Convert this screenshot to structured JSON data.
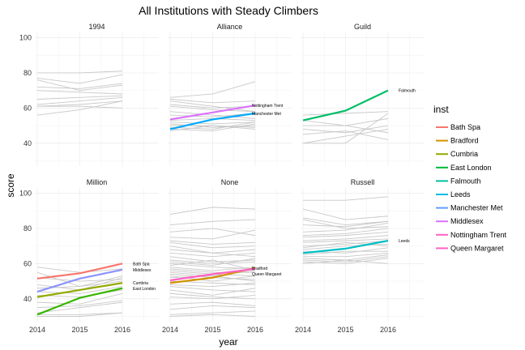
{
  "title": "All Institutions with Steady Climbers",
  "chart_data": {
    "type": "line",
    "title": "All Institutions with Steady Climbers",
    "xlabel": "year",
    "ylabel": "score",
    "x": [
      2014,
      2015,
      2016
    ],
    "ylim": [
      27,
      103
    ],
    "yticks": [
      40,
      60,
      80,
      100
    ],
    "grid": true,
    "legend": {
      "title": "inst",
      "position": "right",
      "entries": [
        {
          "name": "Bath Spa",
          "color": "#F8766D"
        },
        {
          "name": "Bradford",
          "color": "#D39200"
        },
        {
          "name": "Cumbria",
          "color": "#93AA00"
        },
        {
          "name": "East London",
          "color": "#00BA38"
        },
        {
          "name": "Falmouth",
          "color": "#00C19F"
        },
        {
          "name": "Leeds",
          "color": "#00B9E3"
        },
        {
          "name": "Manchester Met",
          "color": "#619CFF"
        },
        {
          "name": "Middlesex",
          "color": "#DB72FB"
        },
        {
          "name": "Nottingham Trent",
          "color": "#FF61C3"
        },
        {
          "name": "Queen Margaret",
          "color": "#FF61C3"
        }
      ]
    },
    "background_color": "#c8c8c8",
    "panels": [
      {
        "name": "1994",
        "background": [
          [
            80,
            80,
            81
          ],
          [
            77,
            74,
            79
          ],
          [
            76,
            70,
            73
          ],
          [
            72,
            71,
            74
          ],
          [
            70,
            69,
            68
          ],
          [
            65,
            66,
            67
          ],
          [
            62,
            64,
            66
          ],
          [
            61,
            62,
            64
          ],
          [
            61,
            61,
            60
          ],
          [
            56,
            59,
            64
          ]
        ],
        "highlight": []
      },
      {
        "name": "Alliance",
        "background": [
          [
            66,
            68,
            75
          ],
          [
            65,
            63,
            64
          ],
          [
            64,
            61,
            58
          ],
          [
            62,
            60,
            61
          ],
          [
            61,
            59,
            58
          ],
          [
            58,
            56,
            54
          ],
          [
            56,
            55,
            57
          ],
          [
            53,
            54,
            53
          ],
          [
            52,
            51,
            52
          ],
          [
            51,
            49,
            50
          ],
          [
            50,
            50,
            48
          ],
          [
            48,
            47,
            51
          ],
          [
            47,
            50,
            49
          ],
          [
            49,
            48,
            52
          ]
        ],
        "highlight": [
          {
            "name": "Nottingham Trent",
            "values": [
              53.5,
              57.5,
              61.5
            ],
            "color": "#DB72FB"
          },
          {
            "name": "Manchester Met",
            "values": [
              48,
              53.5,
              57
            ],
            "color": "#00A9FF"
          }
        ]
      },
      {
        "name": "Guild",
        "background": [
          [
            56,
            57,
            58
          ],
          [
            53,
            50,
            54
          ],
          [
            50,
            50,
            46
          ],
          [
            48,
            46,
            50
          ],
          [
            45,
            47,
            42
          ],
          [
            40,
            40,
            57
          ],
          [
            40,
            44,
            48
          ]
        ],
        "highlight": [
          {
            "name": "Falmouth",
            "values": [
              53,
              58.5,
              70
            ],
            "color": "#00BE67"
          }
        ]
      },
      {
        "name": "Million",
        "background": [
          [
            58,
            55,
            57
          ],
          [
            55,
            47,
            53
          ],
          [
            52,
            50,
            51
          ],
          [
            48,
            45,
            52
          ],
          [
            46,
            47,
            50
          ],
          [
            44,
            43,
            47
          ],
          [
            42,
            41,
            45
          ],
          [
            38,
            37,
            43
          ],
          [
            35,
            36,
            39
          ],
          [
            32,
            35,
            38
          ],
          [
            31,
            31,
            32
          ],
          [
            30,
            30,
            32
          ]
        ],
        "highlight": [
          {
            "name": "Bath Spa",
            "values": [
              51.5,
              54.5,
              60
            ],
            "color": "#F8766D"
          },
          {
            "name": "Middlesex",
            "values": [
              44,
              51.5,
              56.5
            ],
            "color": "#8B93FF"
          },
          {
            "name": "Cumbria",
            "values": [
              41,
              45,
              49
            ],
            "color": "#93AA00"
          },
          {
            "name": "East London",
            "values": [
              31,
              40.5,
              46
            ],
            "color": "#39B600"
          }
        ]
      },
      {
        "name": "None",
        "background": [
          [
            88,
            92,
            91
          ],
          [
            82,
            84,
            85
          ],
          [
            78,
            80,
            76
          ],
          [
            75,
            74,
            79
          ],
          [
            73,
            71,
            72
          ],
          [
            72,
            69,
            70
          ],
          [
            70,
            66,
            68
          ],
          [
            68,
            66,
            64
          ],
          [
            66,
            64,
            66
          ],
          [
            64,
            61,
            62
          ],
          [
            62,
            60,
            61
          ],
          [
            61,
            59,
            63
          ],
          [
            60,
            58,
            57
          ],
          [
            59,
            62,
            56
          ],
          [
            58,
            56,
            58
          ],
          [
            57,
            55,
            55
          ],
          [
            56,
            54,
            53
          ],
          [
            55,
            53,
            56
          ],
          [
            54,
            52,
            51
          ],
          [
            53,
            50,
            53
          ],
          [
            52,
            53,
            50
          ],
          [
            50,
            49,
            48
          ],
          [
            48,
            47,
            49
          ],
          [
            47,
            45,
            44
          ],
          [
            45,
            42,
            46
          ],
          [
            43,
            41,
            40
          ],
          [
            41,
            40,
            42
          ],
          [
            37,
            38,
            36
          ],
          [
            34,
            36,
            35
          ],
          [
            31,
            32,
            33
          ],
          [
            30,
            31,
            30
          ]
        ],
        "highlight": [
          {
            "name": "Bradford",
            "values": [
              49,
              52,
              57.5
            ],
            "color": "#D39200"
          },
          {
            "name": "Queen Margaret",
            "values": [
              50.5,
              54,
              57
            ],
            "color": "#FF61C3"
          }
        ]
      },
      {
        "name": "Russell",
        "background": [
          [
            96,
            96,
            98
          ],
          [
            91,
            85,
            87
          ],
          [
            86,
            82,
            84
          ],
          [
            85,
            80,
            81
          ],
          [
            82,
            81,
            84
          ],
          [
            78,
            79,
            83
          ],
          [
            76,
            77,
            80
          ],
          [
            75,
            76,
            78
          ],
          [
            73,
            74,
            76
          ],
          [
            72,
            73,
            74
          ],
          [
            70,
            71,
            73
          ],
          [
            69,
            72,
            70
          ],
          [
            68,
            70,
            71
          ],
          [
            67,
            66,
            69
          ],
          [
            65,
            67,
            67
          ],
          [
            64,
            64,
            66
          ],
          [
            63,
            62,
            65
          ],
          [
            62,
            61,
            64
          ],
          [
            61,
            60,
            63
          ],
          [
            60,
            62,
            60
          ]
        ],
        "highlight": [
          {
            "name": "Leeds",
            "values": [
              66,
              68.5,
              73
            ],
            "color": "#00BFC4"
          }
        ]
      }
    ]
  }
}
